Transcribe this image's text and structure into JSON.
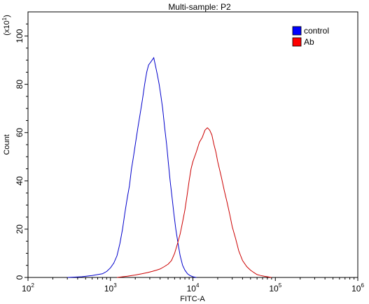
{
  "chart_data": {
    "type": "area",
    "title": "Multi-sample: P2",
    "xlabel": "FITC-A",
    "ylabel": "Count",
    "y_multiplier_label": "(x10",
    "y_multiplier_exp": "1",
    "x_scale": "log",
    "xlim": [
      100,
      1000000
    ],
    "ylim": [
      0,
      110
    ],
    "x_ticks": [
      {
        "value": 100,
        "base": "10",
        "exp": "2"
      },
      {
        "value": 1000,
        "base": "10",
        "exp": "3"
      },
      {
        "value": 10000,
        "base": "10",
        "exp": "4"
      },
      {
        "value": 100000,
        "base": "10",
        "exp": "5"
      },
      {
        "value": 1000000,
        "base": "10",
        "exp": "6"
      }
    ],
    "y_ticks": [
      "0",
      "20",
      "40",
      "60",
      "80",
      "100"
    ],
    "y_tick_values": [
      0,
      20,
      40,
      60,
      80,
      100
    ],
    "legend_position": "top-right",
    "series": [
      {
        "name": "control",
        "color": "#0000cc",
        "legend_color": "#0000ff",
        "x": [
          300,
          450,
          600,
          700,
          800,
          900,
          1000,
          1100,
          1200,
          1300,
          1400,
          1500,
          1600,
          1700,
          1800,
          1900,
          2000,
          2150,
          2300,
          2450,
          2600,
          2750,
          2900,
          3050,
          3200,
          3350,
          3500,
          3700,
          3900,
          4100,
          4300,
          4550,
          4800,
          5050,
          5300,
          5600,
          5900,
          6200,
          6600,
          7000,
          7500,
          8000,
          8600,
          9200,
          10000,
          11000
        ],
        "y": [
          0,
          0.3,
          0.8,
          1.2,
          1.5,
          2.5,
          4,
          6,
          9,
          14,
          20,
          27,
          33,
          38,
          45,
          50,
          55,
          62,
          68,
          74,
          80,
          85,
          88,
          89,
          90,
          91,
          88,
          84,
          80,
          75,
          70,
          62,
          55,
          47,
          40,
          33,
          26,
          20,
          14,
          9,
          5,
          3,
          1.5,
          0.8,
          0.3,
          0
        ]
      },
      {
        "name": "Ab",
        "color": "#cc0000",
        "legend_color": "#ff0000",
        "x": [
          1200,
          1600,
          2000,
          2400,
          2800,
          3200,
          3600,
          4000,
          4500,
          5000,
          5500,
          6000,
          6500,
          7000,
          7500,
          8000,
          8500,
          9000,
          9500,
          10000,
          11000,
          12000,
          13000,
          14000,
          15000,
          16000,
          17000,
          18000,
          19000,
          20000,
          22000,
          24000,
          26000,
          28000,
          30000,
          33000,
          36000,
          40000,
          45000,
          50000,
          55000,
          60000,
          66000,
          73000,
          80000,
          90000
        ],
        "y": [
          0,
          0.5,
          1,
          1.5,
          2,
          2.5,
          3,
          3.5,
          4.5,
          5.5,
          7,
          10,
          14,
          18,
          23,
          28,
          34,
          40,
          45,
          48,
          52,
          56,
          58,
          61,
          62,
          61,
          59,
          55,
          52,
          48,
          42,
          36,
          31,
          26,
          21,
          16,
          11,
          7,
          4.5,
          3,
          2,
          1.2,
          0.8,
          0.5,
          0.3,
          0
        ]
      }
    ]
  }
}
